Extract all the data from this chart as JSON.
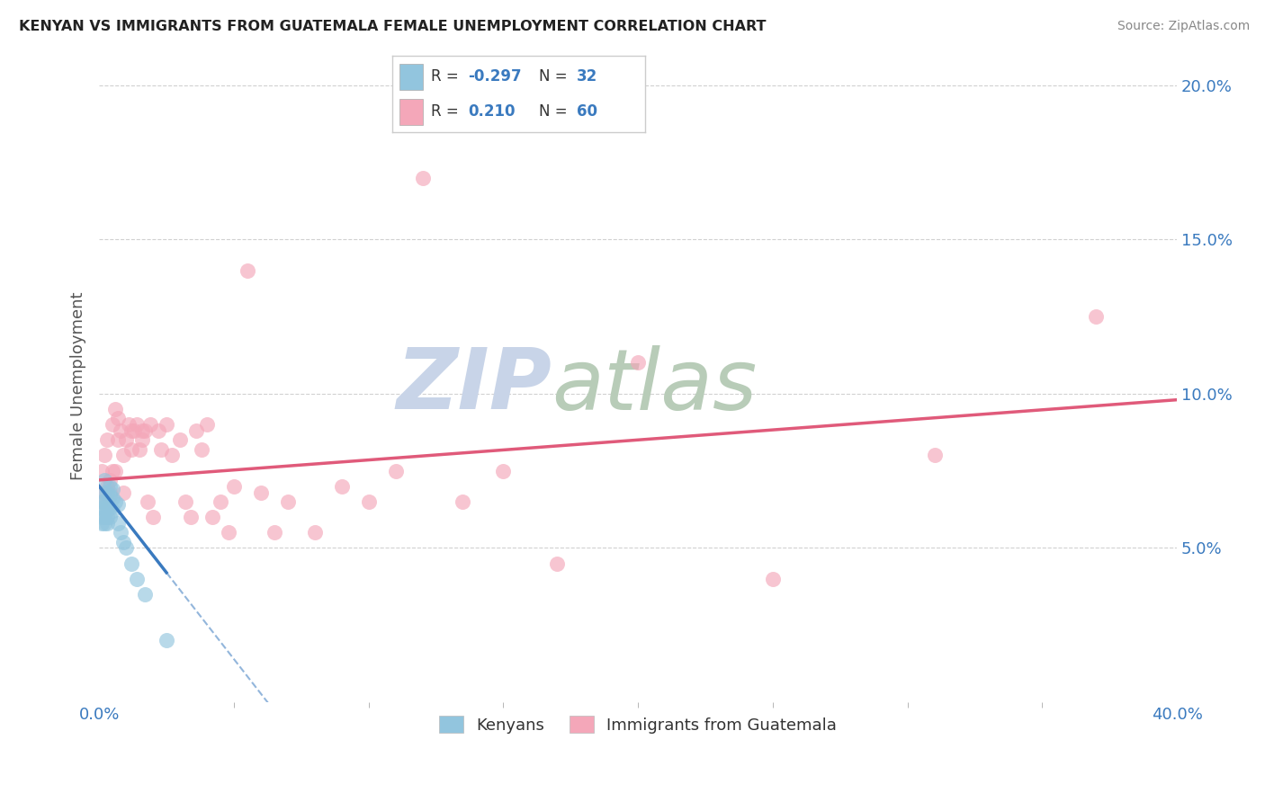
{
  "title": "KENYAN VS IMMIGRANTS FROM GUATEMALA FEMALE UNEMPLOYMENT CORRELATION CHART",
  "source": "Source: ZipAtlas.com",
  "ylabel": "Female Unemployment",
  "x_min": 0.0,
  "x_max": 0.4,
  "y_min": 0.0,
  "y_max": 0.205,
  "legend_label1": "Kenyans",
  "legend_label2": "Immigrants from Guatemala",
  "r1": "-0.297",
  "n1": "32",
  "r2": "0.210",
  "n2": "60",
  "color_blue": "#92c5de",
  "color_pink": "#f4a7b9",
  "color_blue_line": "#3a7abf",
  "color_pink_line": "#e05a7a",
  "color_blue_text": "#3a7abf",
  "watermark_zip_color": "#d8dff0",
  "watermark_atlas_color": "#c8d8c8",
  "background_color": "#ffffff",
  "kenya_x": [
    0.001,
    0.001,
    0.001,
    0.001,
    0.002,
    0.002,
    0.002,
    0.002,
    0.002,
    0.002,
    0.003,
    0.003,
    0.003,
    0.003,
    0.003,
    0.004,
    0.004,
    0.004,
    0.004,
    0.005,
    0.005,
    0.005,
    0.006,
    0.007,
    0.007,
    0.008,
    0.009,
    0.01,
    0.012,
    0.014,
    0.017,
    0.025
  ],
  "kenya_y": [
    0.065,
    0.063,
    0.06,
    0.058,
    0.072,
    0.068,
    0.065,
    0.062,
    0.06,
    0.058,
    0.068,
    0.065,
    0.063,
    0.06,
    0.058,
    0.07,
    0.067,
    0.063,
    0.06,
    0.069,
    0.066,
    0.062,
    0.065,
    0.064,
    0.058,
    0.055,
    0.052,
    0.05,
    0.045,
    0.04,
    0.035,
    0.02
  ],
  "guate_x": [
    0.001,
    0.001,
    0.002,
    0.002,
    0.003,
    0.003,
    0.004,
    0.004,
    0.005,
    0.005,
    0.006,
    0.006,
    0.007,
    0.007,
    0.008,
    0.009,
    0.009,
    0.01,
    0.011,
    0.012,
    0.012,
    0.013,
    0.014,
    0.015,
    0.016,
    0.016,
    0.017,
    0.018,
    0.019,
    0.02,
    0.022,
    0.023,
    0.025,
    0.027,
    0.03,
    0.032,
    0.034,
    0.036,
    0.038,
    0.04,
    0.042,
    0.045,
    0.048,
    0.05,
    0.055,
    0.06,
    0.065,
    0.07,
    0.08,
    0.09,
    0.1,
    0.11,
    0.12,
    0.135,
    0.15,
    0.17,
    0.2,
    0.25,
    0.31,
    0.37
  ],
  "guate_y": [
    0.065,
    0.075,
    0.068,
    0.08,
    0.07,
    0.085,
    0.072,
    0.068,
    0.09,
    0.075,
    0.095,
    0.075,
    0.085,
    0.092,
    0.088,
    0.068,
    0.08,
    0.085,
    0.09,
    0.088,
    0.082,
    0.088,
    0.09,
    0.082,
    0.088,
    0.085,
    0.088,
    0.065,
    0.09,
    0.06,
    0.088,
    0.082,
    0.09,
    0.08,
    0.085,
    0.065,
    0.06,
    0.088,
    0.082,
    0.09,
    0.06,
    0.065,
    0.055,
    0.07,
    0.14,
    0.068,
    0.055,
    0.065,
    0.055,
    0.07,
    0.065,
    0.075,
    0.17,
    0.065,
    0.075,
    0.045,
    0.11,
    0.04,
    0.08,
    0.125
  ],
  "kenya_line_x_start": 0.0,
  "kenya_line_x_solid_end": 0.025,
  "guate_line_x_start": 0.0,
  "guate_line_x_end": 0.4,
  "kenya_line_y_at_0": 0.07,
  "kenya_line_y_at_025": 0.042,
  "guate_line_y_at_0": 0.072,
  "guate_line_y_at_40": 0.098
}
